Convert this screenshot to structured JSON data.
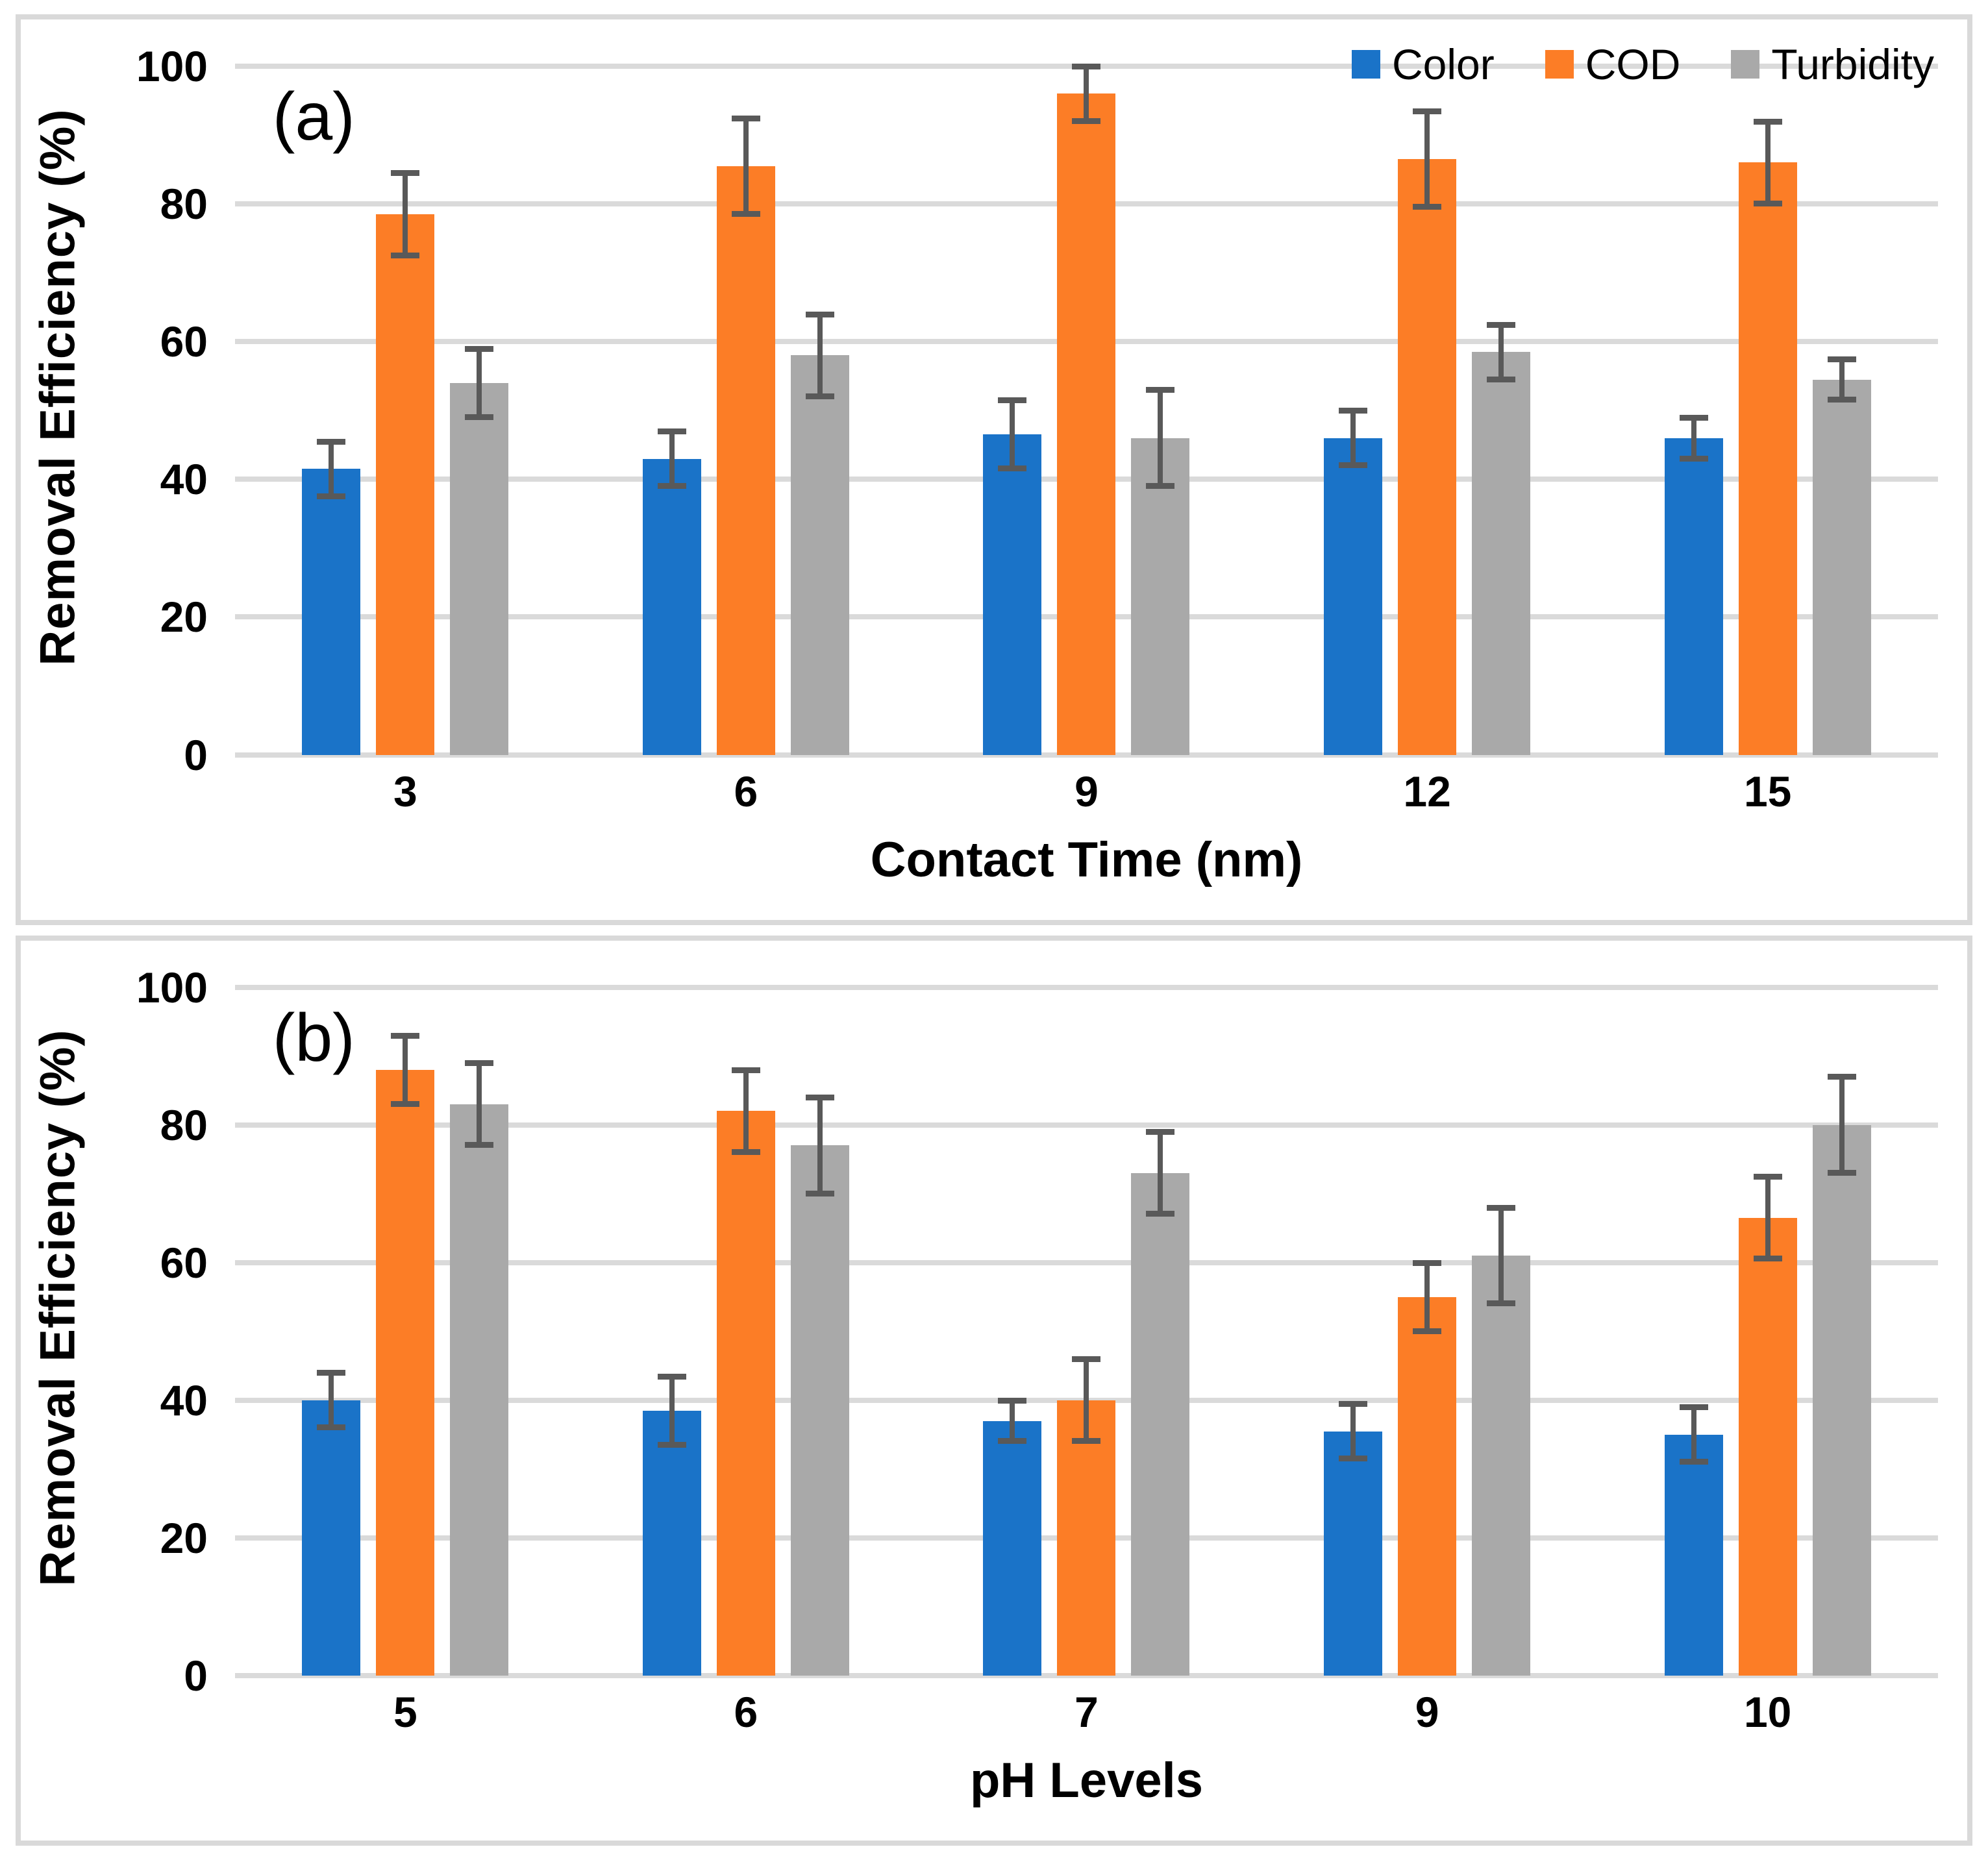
{
  "figure": {
    "background": "#ffffff",
    "panel_border_color": "#d9d9d9",
    "gridline_color": "#dadada",
    "error_bar_color": "#595959",
    "text_color": "#000000"
  },
  "legend": {
    "position": "top-right-inside-panel-a",
    "items": [
      "Color",
      "COD",
      "Turbidity"
    ]
  },
  "chart_data": [
    {
      "type": "bar",
      "panel_label": "(a)",
      "ylabel": "Removal Efficiency (%)",
      "xlabel": "Contact Time (nm)",
      "ylim": [
        0,
        100
      ],
      "yticks": [
        0,
        20,
        40,
        60,
        80,
        100
      ],
      "grid": true,
      "show_legend": true,
      "categories": [
        "3",
        "6",
        "9",
        "12",
        "15"
      ],
      "series": [
        {
          "name": "Color",
          "color": "#1a73c8",
          "values": [
            41.5,
            43,
            46.5,
            46,
            46
          ],
          "errors": [
            4,
            4,
            5,
            4,
            3
          ]
        },
        {
          "name": "COD",
          "color": "#fc7d26",
          "values": [
            78.5,
            85.5,
            96,
            86.5,
            86
          ],
          "errors": [
            6,
            7,
            4,
            7,
            6
          ]
        },
        {
          "name": "Turbidity",
          "color": "#a9a9a9",
          "values": [
            54,
            58,
            46,
            58.5,
            54.5
          ],
          "errors": [
            5,
            6,
            7,
            4,
            3
          ]
        }
      ]
    },
    {
      "type": "bar",
      "panel_label": "(b)",
      "ylabel": "Removal Efficiency (%)",
      "xlabel": "pH Levels",
      "ylim": [
        0,
        100
      ],
      "yticks": [
        0,
        20,
        40,
        60,
        80,
        100
      ],
      "grid": true,
      "show_legend": false,
      "categories": [
        "5",
        "6",
        "7",
        "9",
        "10"
      ],
      "series": [
        {
          "name": "Color",
          "color": "#1a73c8",
          "values": [
            40,
            38.5,
            37,
            35.5,
            35
          ],
          "errors": [
            4,
            5,
            3,
            4,
            4
          ]
        },
        {
          "name": "COD",
          "color": "#fc7d26",
          "values": [
            88,
            82,
            40,
            55,
            66.5
          ],
          "errors": [
            5,
            6,
            6,
            5,
            6
          ]
        },
        {
          "name": "Turbidity",
          "color": "#a9a9a9",
          "values": [
            83,
            77,
            73,
            61,
            80
          ],
          "errors": [
            6,
            7,
            6,
            7,
            7
          ]
        }
      ]
    }
  ]
}
